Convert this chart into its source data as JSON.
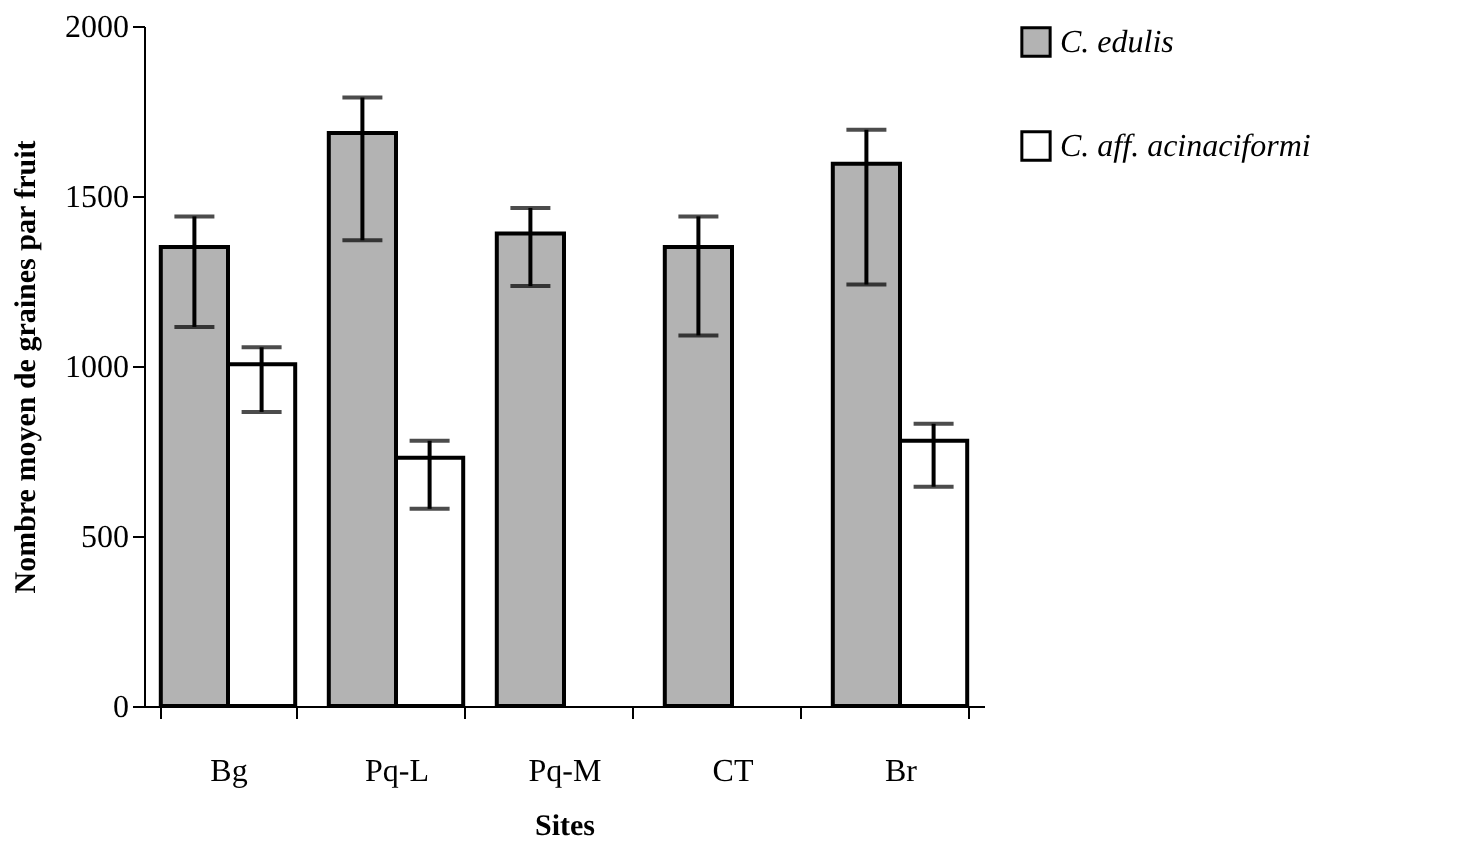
{
  "chart_data": {
    "type": "bar",
    "xlabel": "Sites",
    "ylabel": "Nombre moyen de graines par fruit",
    "categories": [
      "Bg",
      "Pq-L",
      "Pq-M",
      "CT",
      "Br"
    ],
    "series": [
      {
        "name": "C. edulis",
        "color": "#b3b3b3",
        "values": [
          1350,
          1685,
          1390,
          1350,
          1595
        ],
        "errors": [
          [
            1115,
            1440
          ],
          [
            1370,
            1790
          ],
          [
            1235,
            1465
          ],
          [
            1090,
            1440
          ],
          [
            1240,
            1695
          ]
        ]
      },
      {
        "name": "C. aff. acinaciformi",
        "color": "#ffffff",
        "values": [
          1005,
          730,
          null,
          null,
          780
        ],
        "errors": [
          [
            865,
            1055
          ],
          [
            580,
            780
          ],
          null,
          null,
          [
            645,
            830
          ]
        ]
      }
    ],
    "ylim": [
      0,
      2000
    ],
    "yticks": [
      0,
      500,
      1000,
      1500,
      2000
    ],
    "grid": false,
    "legend": "right"
  }
}
